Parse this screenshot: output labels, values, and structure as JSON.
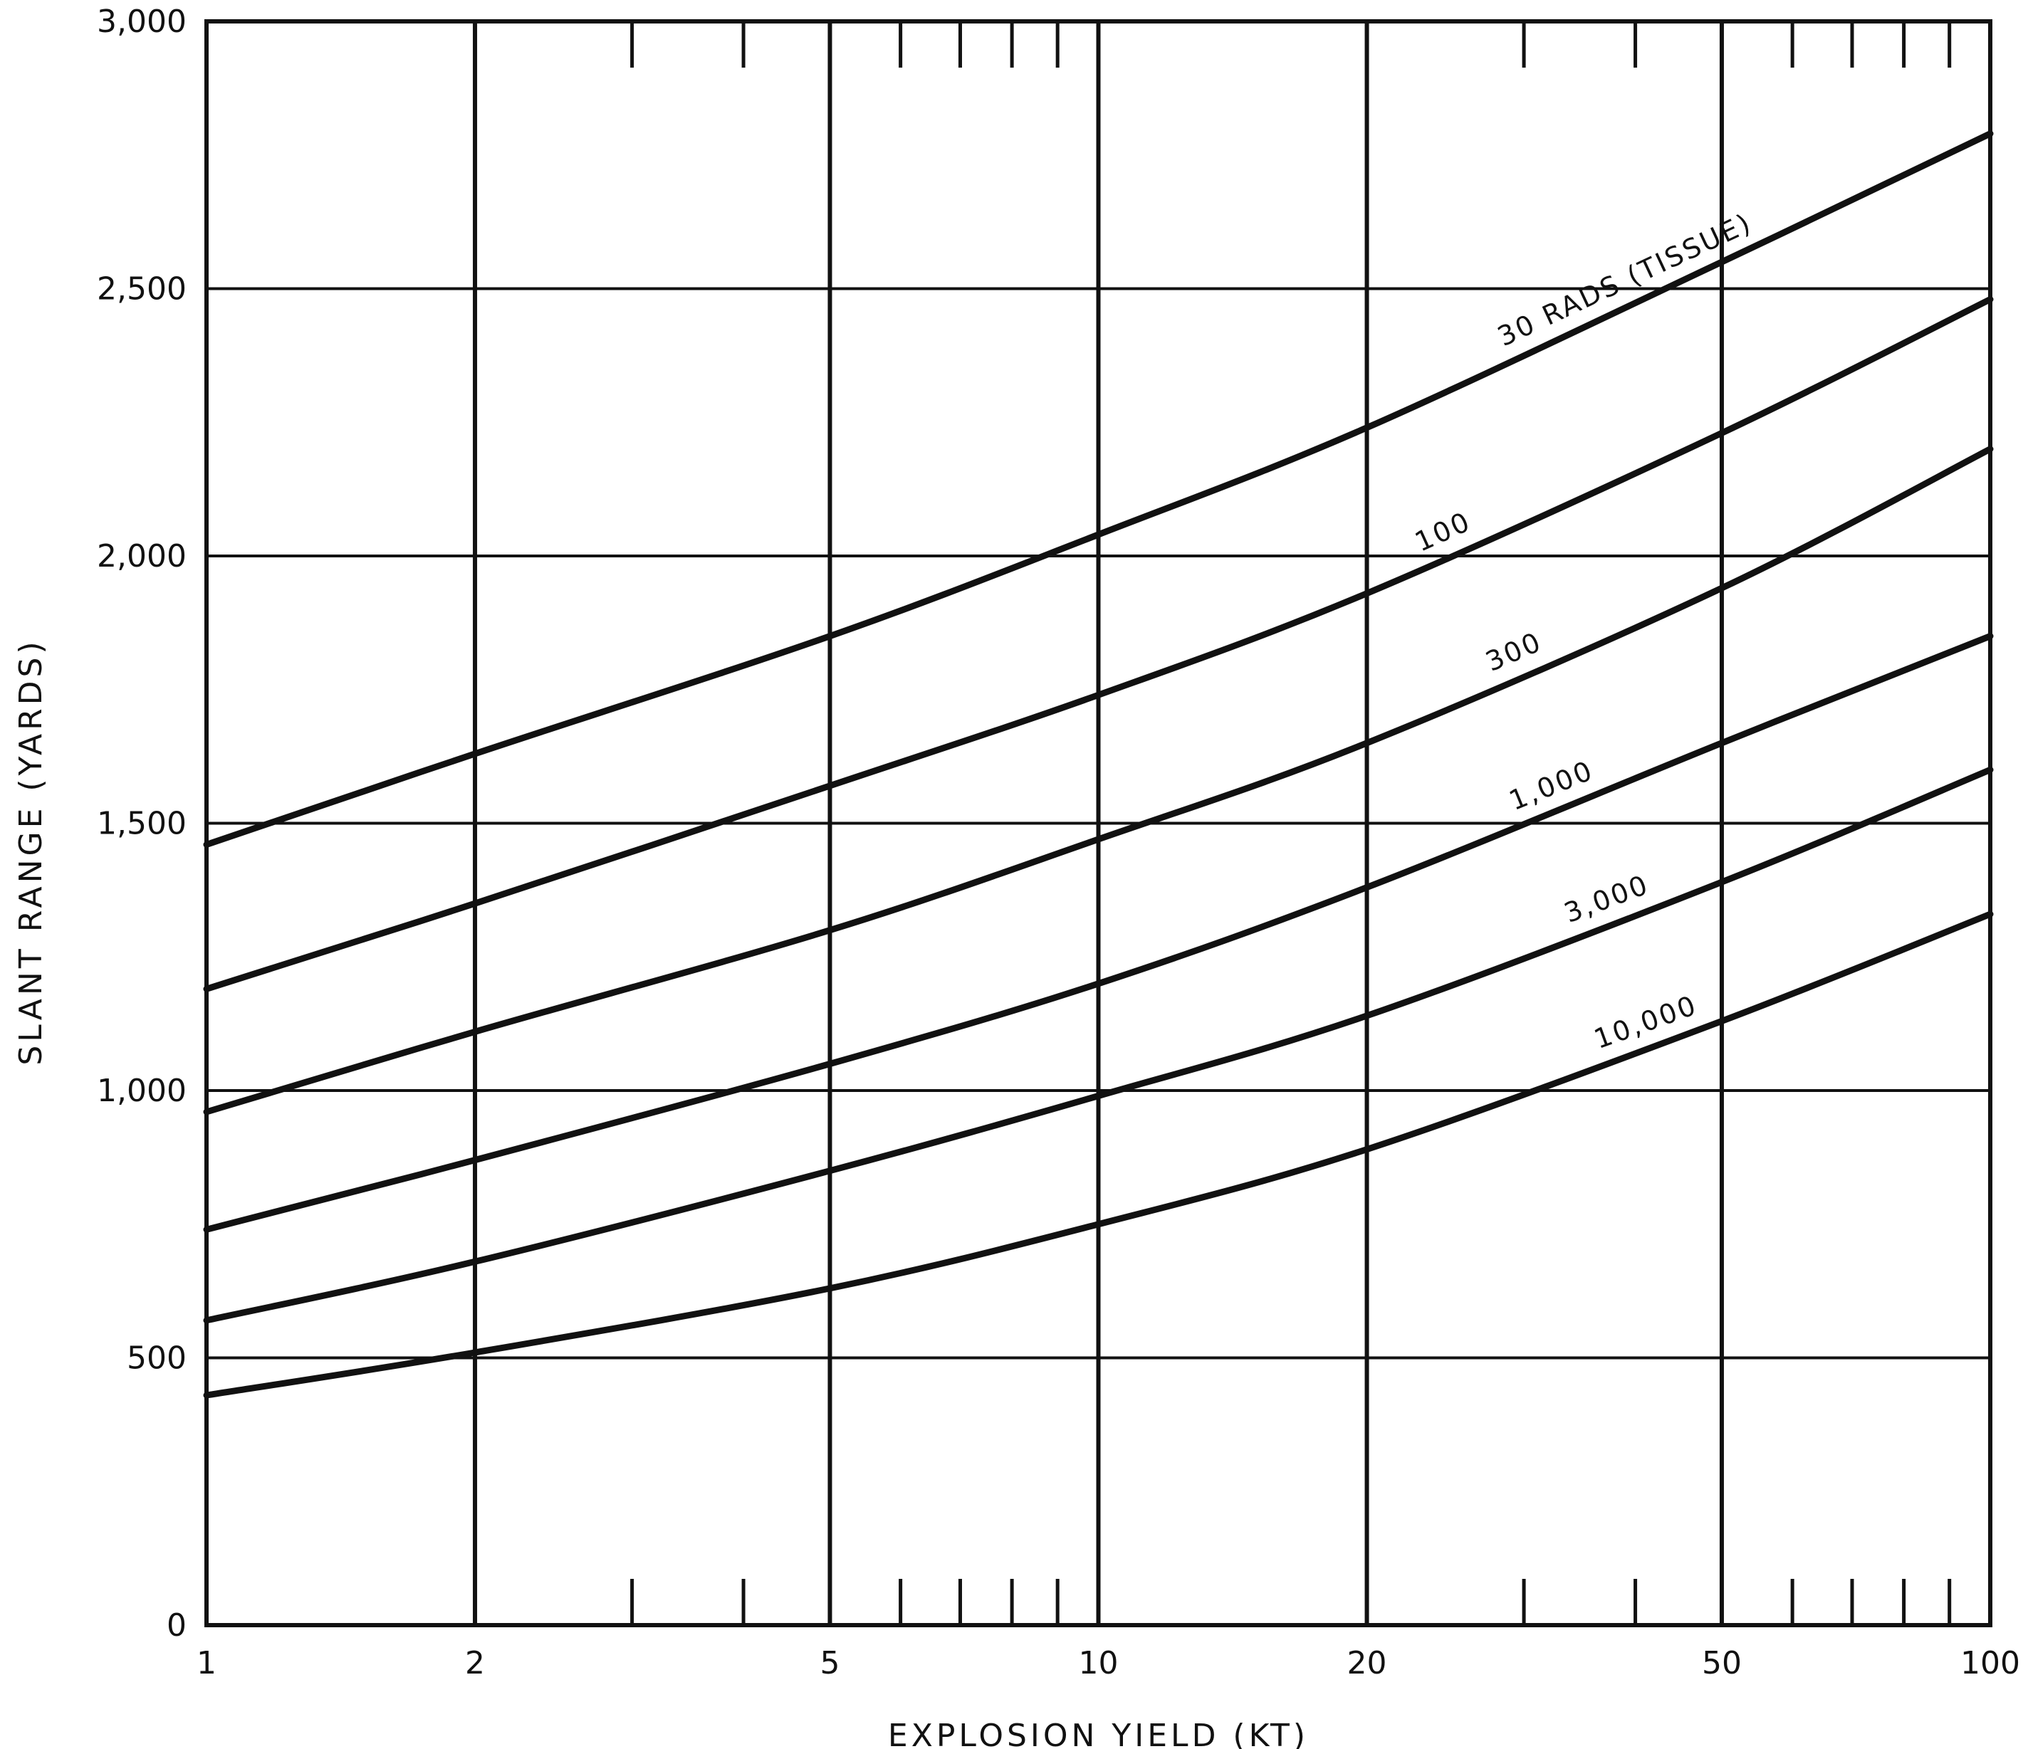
{
  "chart_data": {
    "type": "line",
    "title": "",
    "xlabel": "EXPLOSION YIELD (KT)",
    "ylabel": "SLANT RANGE (YARDS)",
    "x_scale": "log",
    "xlim": [
      1,
      100
    ],
    "ylim": [
      0,
      3000
    ],
    "grid": true,
    "x_gridlines": [
      1,
      2,
      5,
      10,
      20,
      50,
      100
    ],
    "y_gridlines": [
      0,
      500,
      1000,
      1500,
      2000,
      2500,
      3000
    ],
    "x_minor_ticks": [
      3,
      4,
      6,
      7,
      8,
      9,
      30,
      40,
      60,
      70,
      80,
      90
    ],
    "x_ticks": [
      {
        "value": 1,
        "label": "1"
      },
      {
        "value": 2,
        "label": "2"
      },
      {
        "value": 5,
        "label": "5"
      },
      {
        "value": 10,
        "label": "10"
      },
      {
        "value": 20,
        "label": "20"
      },
      {
        "value": 50,
        "label": "50"
      },
      {
        "value": 100,
        "label": "100"
      }
    ],
    "y_ticks": [
      {
        "value": 0,
        "label": "0"
      },
      {
        "value": 500,
        "label": "500"
      },
      {
        "value": 1000,
        "label": "1,000"
      },
      {
        "value": 1500,
        "label": "1,500"
      },
      {
        "value": 2000,
        "label": "2,000"
      },
      {
        "value": 2500,
        "label": "2,500"
      },
      {
        "value": 3000,
        "label": "3,000"
      }
    ],
    "x": [
      1,
      2,
      5,
      10,
      20,
      50,
      100
    ],
    "series": [
      {
        "name": "30 RADS (TISSUE)",
        "label_at_x": 40,
        "values": [
          1460,
          1630,
          1850,
          2040,
          2240,
          2550,
          2790
        ]
      },
      {
        "name": "100",
        "label_at_x": 25,
        "values": [
          1190,
          1350,
          1570,
          1740,
          1930,
          2230,
          2480
        ]
      },
      {
        "name": "300",
        "label_at_x": 30,
        "values": [
          960,
          1110,
          1300,
          1470,
          1650,
          1940,
          2200
        ]
      },
      {
        "name": "1,000",
        "label_at_x": 33,
        "values": [
          740,
          870,
          1050,
          1200,
          1380,
          1650,
          1850
        ]
      },
      {
        "name": "3,000",
        "label_at_x": 38,
        "values": [
          570,
          680,
          850,
          990,
          1140,
          1390,
          1600
        ]
      },
      {
        "name": "10,000",
        "label_at_x": 42,
        "values": [
          430,
          510,
          630,
          750,
          890,
          1130,
          1330
        ]
      }
    ]
  }
}
